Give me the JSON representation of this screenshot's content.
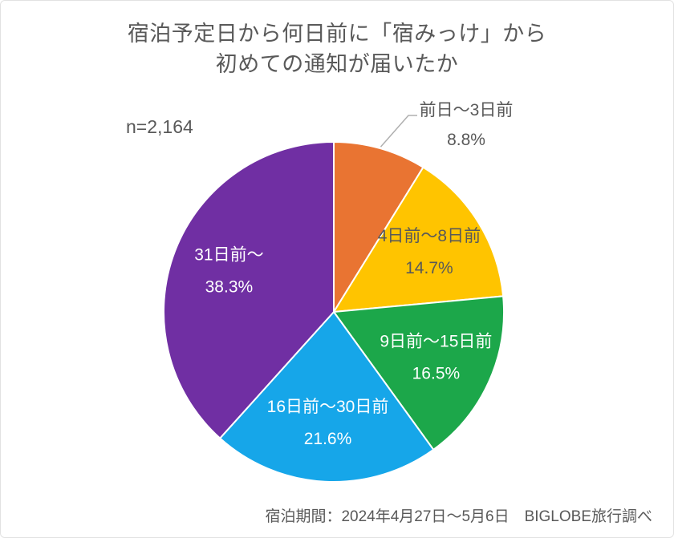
{
  "chart_data": {
    "type": "pie",
    "title_lines": [
      "宿泊予定日から何日前に「宿みっけ」から",
      "初めての通知が届いたか"
    ],
    "n_label": "n=2,164",
    "footnote": "宿泊期間：2024年4月27日〜5月6日　BIGLOBE旅行調べ",
    "unit": "%",
    "start_angle_deg": 0,
    "direction": "clockwise",
    "slices": [
      {
        "label": "前日〜3日前",
        "value": 8.8,
        "color": "#E97432",
        "label_color": "#595959",
        "label_placement": "outside-callout"
      },
      {
        "label": "4日前〜8日前",
        "value": 14.7,
        "color": "#FFC400",
        "label_color": "#595959",
        "label_placement": "inside"
      },
      {
        "label": "9日前〜15日前",
        "value": 16.5,
        "color": "#1CA74A",
        "label_color": "#FFFFFF",
        "label_placement": "inside"
      },
      {
        "label": "16日前〜30日前",
        "value": 21.6,
        "color": "#16A6E9",
        "label_color": "#FFFFFF",
        "label_placement": "inside"
      },
      {
        "label": "31日前〜",
        "value": 38.3,
        "color": "#702FA3",
        "label_color": "#FFFFFF",
        "label_placement": "inside"
      }
    ],
    "leader_line_color": "#AFAFAF"
  }
}
